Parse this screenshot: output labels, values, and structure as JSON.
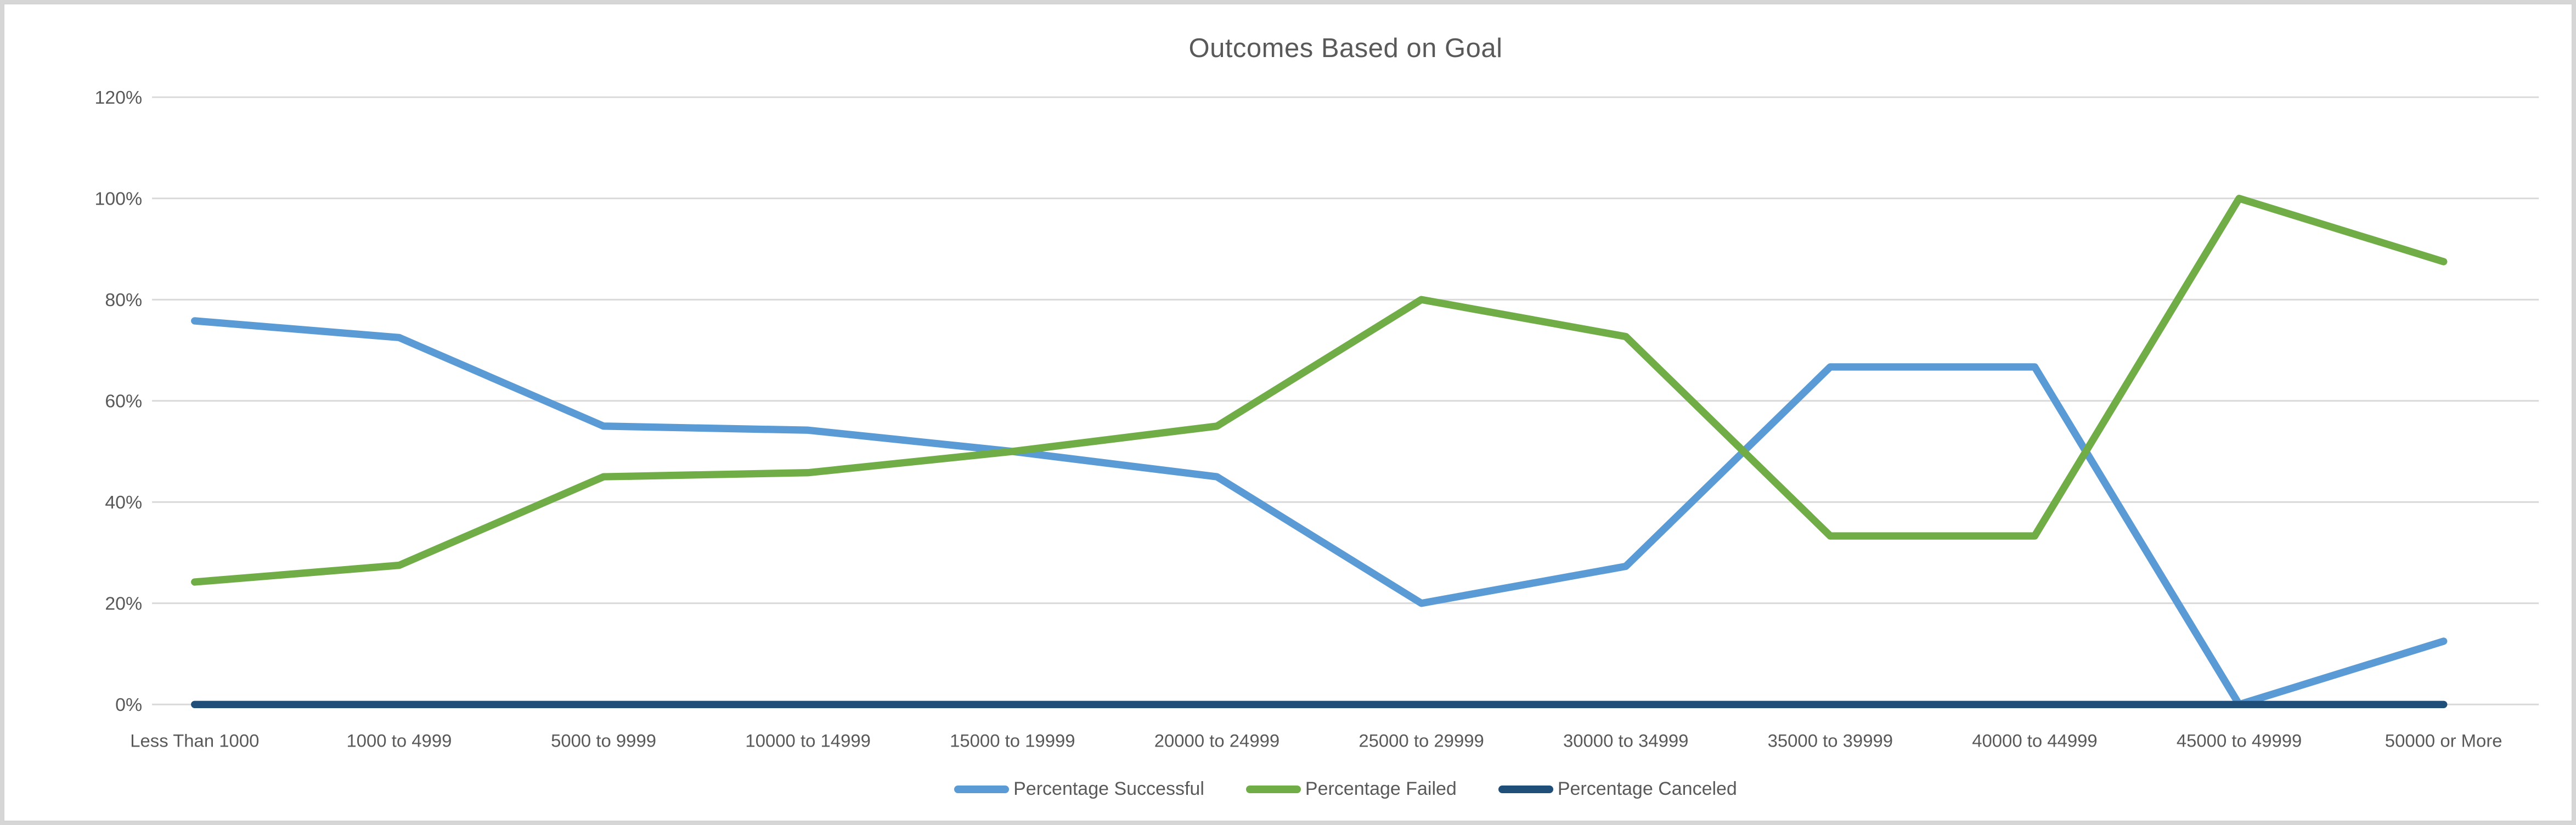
{
  "chart_data": {
    "type": "line",
    "title": "Outcomes Based on Goal",
    "categories": [
      "Less Than 1000",
      "1000 to 4999",
      "5000 to 9999",
      "10000 to 14999",
      "15000 to 19999",
      "20000 to 24999",
      "25000 to 29999",
      "30000 to 34999",
      "35000 to 39999",
      "40000 to 44999",
      "45000 to 49999",
      "50000 or More"
    ],
    "series": [
      {
        "name": "Percentage Successful",
        "color": "#5B9BD5",
        "values": [
          75.8,
          72.5,
          55,
          54.2,
          50,
          45,
          20,
          27.3,
          66.7,
          66.7,
          0,
          12.5
        ]
      },
      {
        "name": "Percentage Failed",
        "color": "#70AD47",
        "values": [
          24.2,
          27.5,
          45,
          45.8,
          50,
          55,
          80,
          72.7,
          33.3,
          33.3,
          100,
          87.5
        ]
      },
      {
        "name": "Percentage Canceled",
        "color": "#1F4E79",
        "values": [
          0,
          0,
          0,
          0,
          0,
          0,
          0,
          0,
          0,
          0,
          0,
          0
        ]
      }
    ],
    "y_ticks": [
      "0%",
      "20%",
      "40%",
      "60%",
      "80%",
      "100%",
      "120%"
    ],
    "ylim": [
      0,
      120
    ],
    "xlabel": "",
    "ylabel": "",
    "grid": true,
    "legend_position": "bottom"
  },
  "theme": {
    "text_color": "#595959",
    "gridline_color": "#D9D9D9",
    "background": "#FFFFFF",
    "frame_color": "#D6D6D6"
  }
}
